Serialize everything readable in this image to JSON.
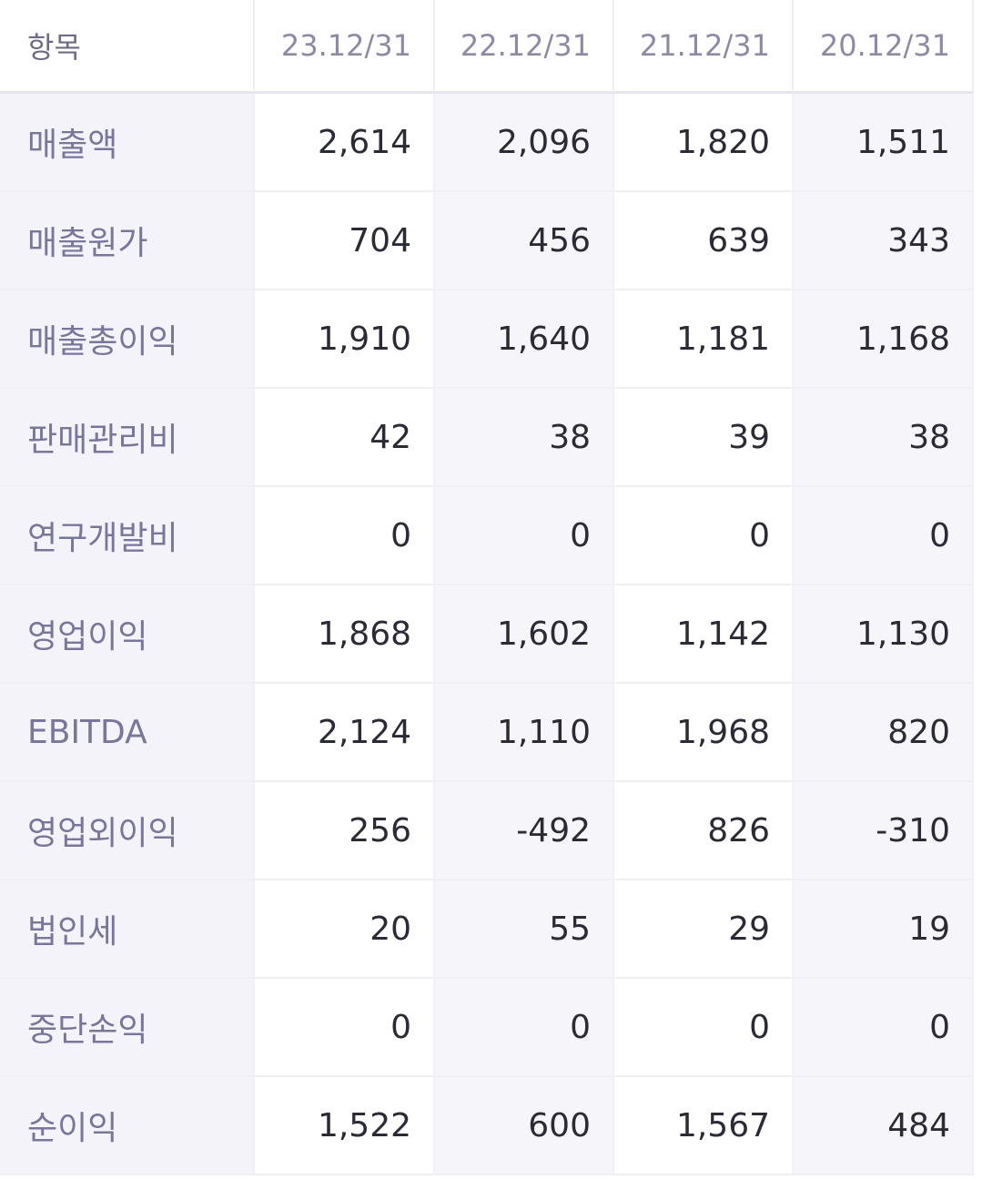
{
  "table": {
    "header": {
      "label": "항목",
      "periods": [
        "23.12/31",
        "22.12/31",
        "21.12/31",
        "20.12/31"
      ]
    },
    "rows": [
      {
        "label": "매출액",
        "values": [
          "2,614",
          "2,096",
          "1,820",
          "1,511"
        ]
      },
      {
        "label": "매출원가",
        "values": [
          "704",
          "456",
          "639",
          "343"
        ]
      },
      {
        "label": "매출총이익",
        "values": [
          "1,910",
          "1,640",
          "1,181",
          "1,168"
        ]
      },
      {
        "label": "판매관리비",
        "values": [
          "42",
          "38",
          "39",
          "38"
        ]
      },
      {
        "label": "연구개발비",
        "values": [
          "0",
          "0",
          "0",
          "0"
        ]
      },
      {
        "label": "영업이익",
        "values": [
          "1,868",
          "1,602",
          "1,142",
          "1,130"
        ]
      },
      {
        "label": "EBITDA",
        "values": [
          "2,124",
          "1,110",
          "1,968",
          "820"
        ]
      },
      {
        "label": "영업외이익",
        "values": [
          "256",
          "-492",
          "826",
          "-310"
        ]
      },
      {
        "label": "법인세",
        "values": [
          "20",
          "55",
          "29",
          "19"
        ]
      },
      {
        "label": "중단손익",
        "values": [
          "0",
          "0",
          "0",
          "0"
        ]
      },
      {
        "label": "순이익",
        "values": [
          "1,522",
          "600",
          "1,567",
          "484"
        ]
      }
    ]
  }
}
